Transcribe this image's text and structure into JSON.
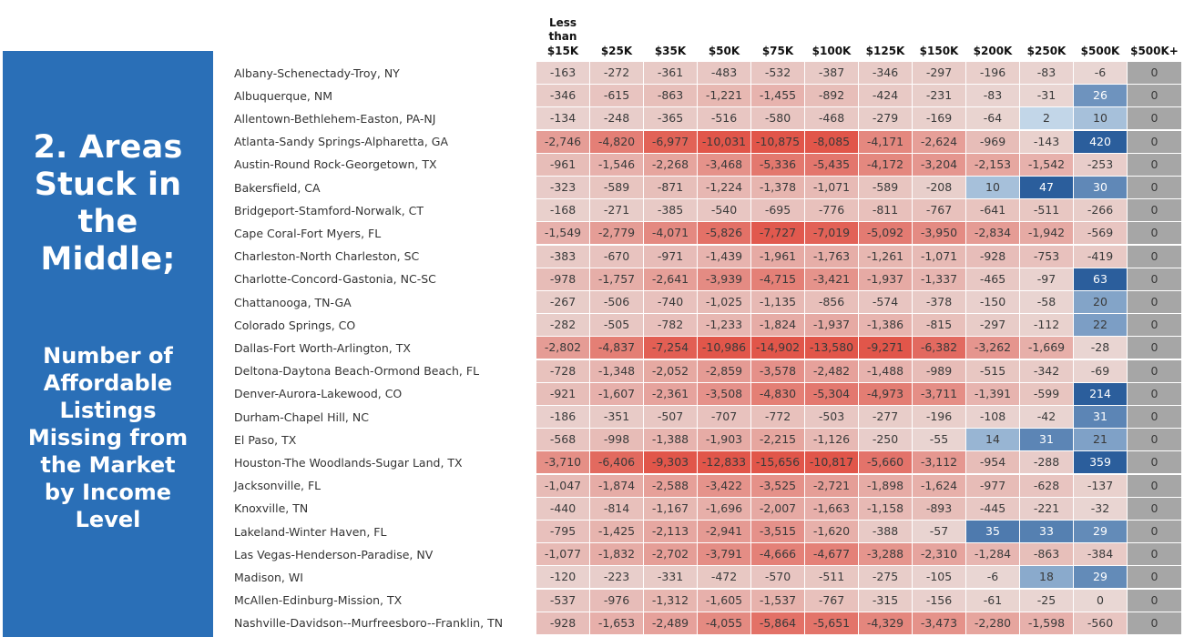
{
  "panel": {
    "title": "2. Areas\nStuck in\nthe\nMiddle;",
    "subtitle": "Number of\nAffordable\nListings\nMissing from\nthe Market\nby Income\nLevel"
  },
  "chart_data": {
    "type": "heatmap",
    "columns": [
      "Less\nthan\n$15K",
      "$25K",
      "$35K",
      "$50K",
      "$75K",
      "$100K",
      "$125K",
      "$150K",
      "$200K",
      "$250K",
      "$500K",
      "$500K+"
    ],
    "rows": [
      {
        "label": "Albany-Schenectady-Troy, NY",
        "values": [
          -163,
          -272,
          -361,
          -483,
          -532,
          -387,
          -346,
          -297,
          -196,
          -83,
          -6,
          0
        ]
      },
      {
        "label": "Albuquerque, NM",
        "values": [
          -346,
          -615,
          -863,
          -1221,
          -1455,
          -892,
          -424,
          -231,
          -83,
          -31,
          26,
          0
        ]
      },
      {
        "label": "Allentown-Bethlehem-Easton, PA-NJ",
        "values": [
          -134,
          -248,
          -365,
          -516,
          -580,
          -468,
          -279,
          -169,
          -64,
          2,
          10,
          0
        ]
      },
      {
        "label": "Atlanta-Sandy Springs-Alpharetta, GA",
        "values": [
          -2746,
          -4820,
          -6977,
          -10031,
          -10875,
          -8085,
          -4171,
          -2624,
          -969,
          -143,
          420,
          0
        ]
      },
      {
        "label": "Austin-Round Rock-Georgetown, TX",
        "values": [
          -961,
          -1546,
          -2268,
          -3468,
          -5336,
          -5435,
          -4172,
          -3204,
          -2153,
          -1542,
          -253,
          0
        ]
      },
      {
        "label": "Bakersfield, CA",
        "values": [
          -323,
          -589,
          -871,
          -1224,
          -1378,
          -1071,
          -589,
          -208,
          10,
          47,
          30,
          0
        ]
      },
      {
        "label": "Bridgeport-Stamford-Norwalk, CT",
        "values": [
          -168,
          -271,
          -385,
          -540,
          -695,
          -776,
          -811,
          -767,
          -641,
          -511,
          -266,
          0
        ]
      },
      {
        "label": "Cape Coral-Fort Myers, FL",
        "values": [
          -1549,
          -2779,
          -4071,
          -5826,
          -7727,
          -7019,
          -5092,
          -3950,
          -2834,
          -1942,
          -569,
          0
        ]
      },
      {
        "label": "Charleston-North Charleston, SC",
        "values": [
          -383,
          -670,
          -971,
          -1439,
          -1961,
          -1763,
          -1261,
          -1071,
          -928,
          -753,
          -419,
          0
        ]
      },
      {
        "label": "Charlotte-Concord-Gastonia, NC-SC",
        "values": [
          -978,
          -1757,
          -2641,
          -3939,
          -4715,
          -3421,
          -1937,
          -1337,
          -465,
          -97,
          63,
          0
        ]
      },
      {
        "label": "Chattanooga, TN-GA",
        "values": [
          -267,
          -506,
          -740,
          -1025,
          -1135,
          -856,
          -574,
          -378,
          -150,
          -58,
          20,
          0
        ]
      },
      {
        "label": "Colorado Springs, CO",
        "values": [
          -282,
          -505,
          -782,
          -1233,
          -1824,
          -1937,
          -1386,
          -815,
          -297,
          -112,
          22,
          0
        ]
      },
      {
        "label": "Dallas-Fort Worth-Arlington, TX",
        "values": [
          -2802,
          -4837,
          -7254,
          -10986,
          -14902,
          -13580,
          -9271,
          -6382,
          -3262,
          -1669,
          -28,
          0
        ]
      },
      {
        "label": "Deltona-Daytona Beach-Ormond Beach, FL",
        "values": [
          -728,
          -1348,
          -2052,
          -2859,
          -3578,
          -2482,
          -1488,
          -989,
          -515,
          -342,
          -69,
          0
        ]
      },
      {
        "label": "Denver-Aurora-Lakewood, CO",
        "values": [
          -921,
          -1607,
          -2361,
          -3508,
          -4830,
          -5304,
          -4973,
          -3711,
          -1391,
          -599,
          214,
          0
        ]
      },
      {
        "label": "Durham-Chapel Hill, NC",
        "values": [
          -186,
          -351,
          -507,
          -707,
          -772,
          -503,
          -277,
          -196,
          -108,
          -42,
          31,
          0
        ]
      },
      {
        "label": "El Paso, TX",
        "values": [
          -568,
          -998,
          -1388,
          -1903,
          -2215,
          -1126,
          -250,
          -55,
          14,
          31,
          21,
          0
        ]
      },
      {
        "label": "Houston-The Woodlands-Sugar Land, TX",
        "values": [
          -3710,
          -6406,
          -9303,
          -12833,
          -15656,
          -10817,
          -5660,
          -3112,
          -954,
          -288,
          359,
          0
        ]
      },
      {
        "label": "Jacksonville, FL",
        "values": [
          -1047,
          -1874,
          -2588,
          -3422,
          -3525,
          -2721,
          -1898,
          -1624,
          -977,
          -628,
          -137,
          0
        ]
      },
      {
        "label": "Knoxville, TN",
        "values": [
          -440,
          -814,
          -1167,
          -1696,
          -2007,
          -1663,
          -1158,
          -893,
          -445,
          -221,
          -32,
          0
        ]
      },
      {
        "label": "Lakeland-Winter Haven, FL",
        "values": [
          -795,
          -1425,
          -2113,
          -2941,
          -3515,
          -1620,
          -388,
          -57,
          35,
          33,
          29,
          0
        ]
      },
      {
        "label": "Las Vegas-Henderson-Paradise, NV",
        "values": [
          -1077,
          -1832,
          -2702,
          -3791,
          -4666,
          -4677,
          -3288,
          -2310,
          -1284,
          -863,
          -384,
          0
        ]
      },
      {
        "label": "Madison, WI",
        "values": [
          -120,
          -223,
          -331,
          -472,
          -570,
          -511,
          -275,
          -105,
          -6,
          18,
          29,
          0
        ]
      },
      {
        "label": "McAllen-Edinburg-Mission, TX",
        "values": [
          -537,
          -976,
          -1312,
          -1605,
          -1537,
          -767,
          -315,
          -156,
          -61,
          -25,
          0,
          0
        ]
      },
      {
        "label": "Nashville-Davidson--Murfreesboro--Franklin, TN",
        "values": [
          -928,
          -1653,
          -2489,
          -4055,
          -5864,
          -5651,
          -4329,
          -3473,
          -2280,
          -1598,
          -560,
          0
        ]
      }
    ],
    "colors": {
      "negative_light": "#e9d7d4",
      "negative_strong": "#e1564a",
      "positive_light": "#c9dcec",
      "positive_strong": "#2b5e9c",
      "last_column": "#a6a6a6"
    }
  }
}
